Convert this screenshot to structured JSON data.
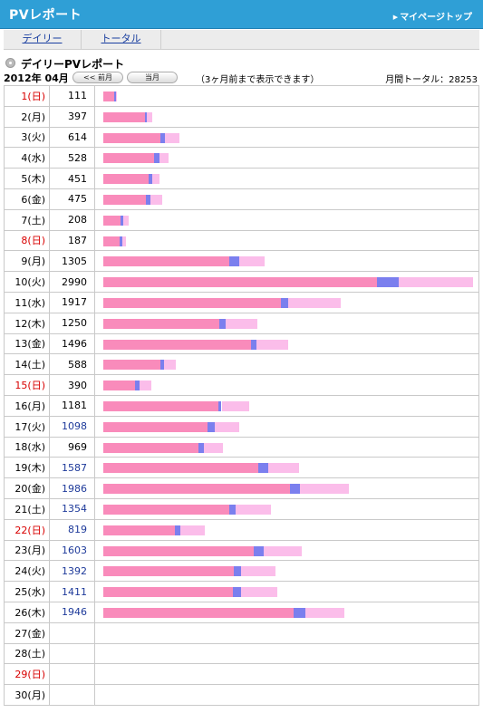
{
  "header": {
    "title": "PVレポート",
    "mypage_link": "マイページトップ"
  },
  "tabs": [
    {
      "label": "デイリー"
    },
    {
      "label": "トータル"
    }
  ],
  "section": {
    "title": "デイリーPVレポート"
  },
  "nav": {
    "month": "2012年 04月",
    "prev_button": "<< 前月",
    "current_button": "当月",
    "note": "（3ヶ月前まで表示できます）",
    "monthly_total": "月間トータル：28253"
  },
  "colors": {
    "header_bg": "#2f9fd6",
    "bar_main": "#f98bbb",
    "bar_mid": "#7b7fee",
    "bar_light": "#fbbdea",
    "weekend_red": "#d80000",
    "num_blue": "#1e3a9a"
  },
  "rows": [
    {
      "day": "1(日)",
      "pv": "111",
      "red": true,
      "blue": false,
      "main": 82,
      "mid": 8,
      "light": 10
    },
    {
      "day": "2(月)",
      "pv": "397",
      "red": false,
      "blue": false,
      "main": 84,
      "mid": 5,
      "light": 11
    },
    {
      "day": "3(火)",
      "pv": "614",
      "red": false,
      "blue": false,
      "main": 75,
      "mid": 6,
      "light": 19
    },
    {
      "day": "4(水)",
      "pv": "528",
      "red": false,
      "blue": false,
      "main": 78,
      "mid": 8,
      "light": 14
    },
    {
      "day": "5(木)",
      "pv": "451",
      "red": false,
      "blue": false,
      "main": 81,
      "mid": 7,
      "light": 12
    },
    {
      "day": "6(金)",
      "pv": "475",
      "red": false,
      "blue": false,
      "main": 72,
      "mid": 8,
      "light": 20
    },
    {
      "day": "7(土)",
      "pv": "208",
      "red": false,
      "blue": false,
      "main": 68,
      "mid": 10,
      "light": 22
    },
    {
      "day": "8(日)",
      "pv": "187",
      "red": true,
      "blue": false,
      "main": 72,
      "mid": 10,
      "light": 18
    },
    {
      "day": "9(月)",
      "pv": "1305",
      "red": false,
      "blue": false,
      "main": 78,
      "mid": 6,
      "light": 16
    },
    {
      "day": "10(火)",
      "pv": "2990",
      "red": false,
      "blue": false,
      "main": 74,
      "mid": 6,
      "light": 20
    },
    {
      "day": "11(水)",
      "pv": "1917",
      "red": false,
      "blue": false,
      "main": 75,
      "mid": 3,
      "light": 22
    },
    {
      "day": "12(木)",
      "pv": "1250",
      "red": false,
      "blue": false,
      "main": 75,
      "mid": 4,
      "light": 21
    },
    {
      "day": "13(金)",
      "pv": "1496",
      "red": false,
      "blue": false,
      "main": 80,
      "mid": 3,
      "light": 17
    },
    {
      "day": "14(土)",
      "pv": "588",
      "red": false,
      "blue": false,
      "main": 79,
      "mid": 4,
      "light": 17
    },
    {
      "day": "15(日)",
      "pv": "390",
      "red": true,
      "blue": false,
      "main": 65,
      "mid": 10,
      "light": 25
    },
    {
      "day": "16(月)",
      "pv": "1181",
      "red": false,
      "blue": false,
      "main": 79,
      "mid": 2,
      "light": 19
    },
    {
      "day": "17(火)",
      "pv": "1098",
      "red": false,
      "blue": true,
      "main": 77,
      "mid": 5,
      "light": 18
    },
    {
      "day": "18(水)",
      "pv": "969",
      "red": false,
      "blue": false,
      "main": 79,
      "mid": 5,
      "light": 16
    },
    {
      "day": "19(木)",
      "pv": "1587",
      "red": false,
      "blue": true,
      "main": 79,
      "mid": 5,
      "light": 16
    },
    {
      "day": "20(金)",
      "pv": "1986",
      "red": false,
      "blue": true,
      "main": 76,
      "mid": 4,
      "light": 20
    },
    {
      "day": "21(土)",
      "pv": "1354",
      "red": false,
      "blue": true,
      "main": 75,
      "mid": 4,
      "light": 21
    },
    {
      "day": "22(日)",
      "pv": "819",
      "red": true,
      "blue": true,
      "main": 71,
      "mid": 5,
      "light": 24
    },
    {
      "day": "23(月)",
      "pv": "1603",
      "red": false,
      "blue": true,
      "main": 76,
      "mid": 5,
      "light": 19
    },
    {
      "day": "24(火)",
      "pv": "1392",
      "red": false,
      "blue": true,
      "main": 76,
      "mid": 4,
      "light": 20
    },
    {
      "day": "25(水)",
      "pv": "1411",
      "red": false,
      "blue": true,
      "main": 74,
      "mid": 5,
      "light": 21
    },
    {
      "day": "26(木)",
      "pv": "1946",
      "red": false,
      "blue": true,
      "main": 79,
      "mid": 5,
      "light": 16
    },
    {
      "day": "27(金)",
      "pv": "",
      "red": false,
      "blue": false
    },
    {
      "day": "28(土)",
      "pv": "",
      "red": false,
      "blue": false
    },
    {
      "day": "29(日)",
      "pv": "",
      "red": true,
      "blue": false
    },
    {
      "day": "30(月)",
      "pv": "",
      "red": false,
      "blue": false
    }
  ]
}
